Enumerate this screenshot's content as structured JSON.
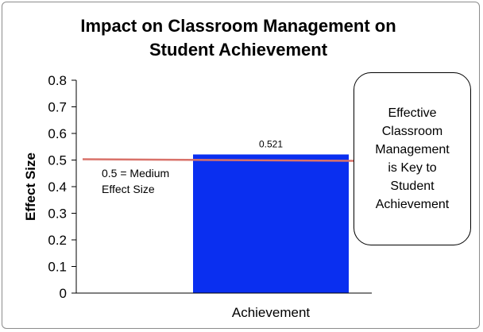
{
  "chart_data": {
    "type": "bar",
    "title_lines": [
      "Impact on Classroom Management on",
      "Student Achievement"
    ],
    "xlabel": "",
    "ylabel": "Effect Size",
    "categories": [
      "Achievement"
    ],
    "values": [
      0.521
    ],
    "data_labels": [
      "0.521"
    ],
    "ylim": [
      0,
      0.8
    ],
    "yticks": [
      0,
      0.1,
      0.2,
      0.3,
      0.4,
      0.5,
      0.6,
      0.7,
      0.8
    ],
    "ytick_labels": [
      "0",
      "0.1",
      "0.2",
      "0.3",
      "0.4",
      "0.5",
      "0.6",
      "0.7",
      "0.8"
    ],
    "grid": false,
    "legend": "none",
    "bar_color": "#0a2ff0",
    "reference_line": {
      "value": 0.5,
      "color": "#d9726a",
      "label_lines": [
        "0.5 = Medium",
        "Effect Size"
      ]
    },
    "callout_lines": [
      "Effective",
      "Classroom",
      "Management",
      "is Key to",
      "Student",
      "Achievement"
    ]
  }
}
